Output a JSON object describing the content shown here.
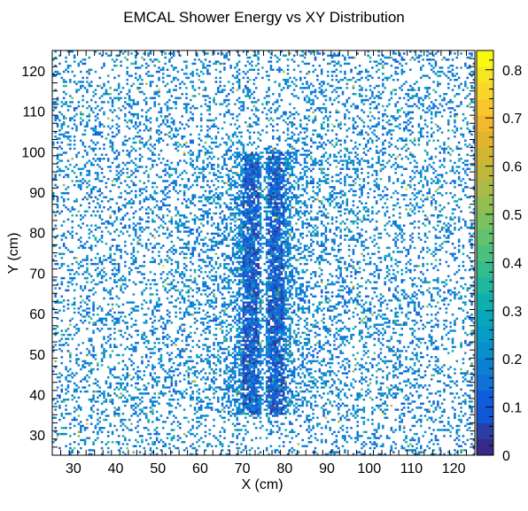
{
  "chart_data": {
    "type": "heatmap",
    "title": "EMCAL Shower Energy vs XY Distribution",
    "xlabel": "X (cm)",
    "ylabel": "Y (cm)",
    "xlim": [
      25,
      125
    ],
    "ylim": [
      25,
      125
    ],
    "bins_x": 200,
    "bins_y": 200,
    "x_ticks": [
      "30",
      "40",
      "50",
      "60",
      "70",
      "80",
      "90",
      "100",
      "110",
      "120"
    ],
    "y_ticks": [
      "30",
      "40",
      "50",
      "60",
      "70",
      "80",
      "90",
      "100",
      "110",
      "120"
    ],
    "z_range": [
      0,
      0.84
    ],
    "z_ticks": [
      "0",
      "0.1",
      "0.2",
      "0.3",
      "0.4",
      "0.5",
      "0.6",
      "0.7",
      "0.8"
    ],
    "palette": [
      "#352a87",
      "#2b3ea6",
      "#1058d6",
      "#0f5cdd",
      "#1071d8",
      "#0b80d3",
      "#0890cd",
      "#079cc5",
      "#06a7bb",
      "#0eb0ae",
      "#1fb89e",
      "#33bd8e",
      "#4bc07e",
      "#62c26e",
      "#7bc15f",
      "#93bf52",
      "#aabc47",
      "#bfb83d",
      "#d1b634",
      "#e3b52d",
      "#f2b92c",
      "#f9c72b",
      "#f9d629",
      "#f5e523",
      "#f9fb0e"
    ],
    "distribution": {
      "description": "sparse random hits; dense vertical band near x=70-80 (y 40-95), gap at x~75; most cells low energy (~0.1-0.25), occasional green/yellow cells",
      "band_x_centers": [
        72,
        78
      ],
      "band_gap_x": 75,
      "band_y_range": [
        35,
        100
      ],
      "typical_value": 0.18
    },
    "grid": false,
    "legend": "colorbar-right"
  }
}
